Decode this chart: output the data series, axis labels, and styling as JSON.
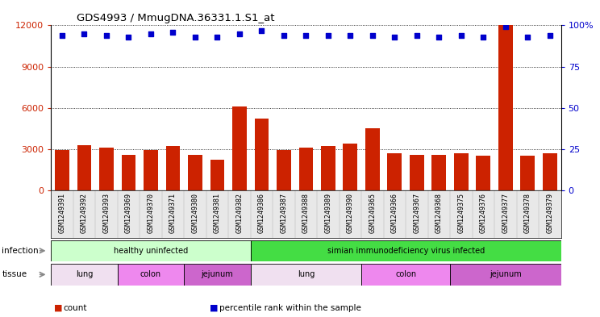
{
  "title": "GDS4993 / MmugDNA.36331.1.S1_at",
  "samples": [
    "GSM1249391",
    "GSM1249392",
    "GSM1249393",
    "GSM1249369",
    "GSM1249370",
    "GSM1249371",
    "GSM1249380",
    "GSM1249381",
    "GSM1249382",
    "GSM1249386",
    "GSM1249387",
    "GSM1249388",
    "GSM1249389",
    "GSM1249390",
    "GSM1249365",
    "GSM1249366",
    "GSM1249367",
    "GSM1249368",
    "GSM1249375",
    "GSM1249376",
    "GSM1249377",
    "GSM1249378",
    "GSM1249379"
  ],
  "counts": [
    2900,
    3300,
    3100,
    2600,
    2900,
    3200,
    2600,
    2200,
    6100,
    5200,
    2900,
    3100,
    3200,
    3400,
    4500,
    2700,
    2600,
    2600,
    2700,
    2500,
    12000,
    2500,
    2700
  ],
  "percentiles": [
    94,
    95,
    94,
    93,
    95,
    96,
    93,
    93,
    95,
    97,
    94,
    94,
    94,
    94,
    94,
    93,
    94,
    93,
    94,
    93,
    99,
    93,
    94
  ],
  "bar_color": "#cc2200",
  "dot_color": "#0000cc",
  "ylim_left": [
    0,
    12000
  ],
  "ylim_right": [
    0,
    100
  ],
  "yticks_left": [
    0,
    3000,
    6000,
    9000,
    12000
  ],
  "yticks_right": [
    0,
    25,
    50,
    75,
    100
  ],
  "bg_color": "#e8e8e8",
  "infection_groups": [
    {
      "label": "healthy uninfected",
      "start": 0,
      "end": 8,
      "color": "#ccffcc"
    },
    {
      "label": "simian immunodeficiency virus infected",
      "start": 9,
      "end": 22,
      "color": "#44dd44"
    }
  ],
  "tissue_groups": [
    {
      "label": "lung",
      "start": 0,
      "end": 2,
      "color": "#f0e0f0"
    },
    {
      "label": "colon",
      "start": 3,
      "end": 5,
      "color": "#ee88ee"
    },
    {
      "label": "jejunum",
      "start": 6,
      "end": 8,
      "color": "#cc66cc"
    },
    {
      "label": "lung",
      "start": 9,
      "end": 13,
      "color": "#f0e0f0"
    },
    {
      "label": "colon",
      "start": 14,
      "end": 17,
      "color": "#ee88ee"
    },
    {
      "label": "jejunum",
      "start": 18,
      "end": 22,
      "color": "#cc66cc"
    }
  ],
  "legend_items": [
    {
      "label": "count",
      "color": "#cc2200"
    },
    {
      "label": "percentile rank within the sample",
      "color": "#0000cc"
    }
  ]
}
